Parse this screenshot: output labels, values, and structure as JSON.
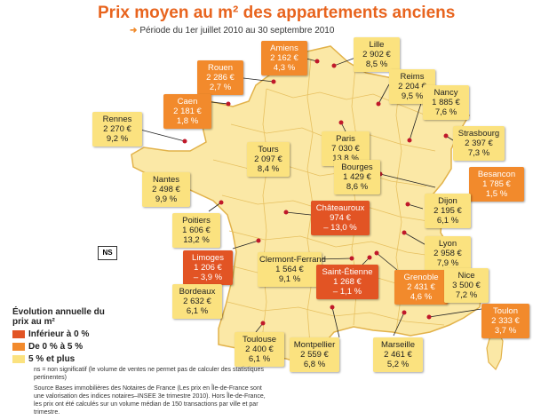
{
  "title": "Prix moyen au m² des appartements anciens",
  "subtitle": "Période du 1er juillet 2010 au 30 septembre 2010",
  "legend": {
    "title": "Évolution annuelle du prix au m²",
    "items": [
      {
        "label": "Inférieur à 0 %",
        "color": "#e25424"
      },
      {
        "label": "De 0 % à 5 %",
        "color": "#f28a2c"
      },
      {
        "label": "5 % et plus",
        "color": "#fbe27f"
      }
    ]
  },
  "ns_label": "NS",
  "notes": {
    "ns": "ns = non significatif (le volume de ventes ne permet pas de calculer des statistiques pertinentes)",
    "source": "Source Bases immobilières des Notaires de France (Les prix en Île-de-France sont une valorisation des indices notaires–INSEE 3e trimestre 2010). Hors Île-de-France, les prix ont été calculés sur un volume médian de 150 transactions par ville et par trimestre."
  },
  "colors": {
    "title": "#e8641e",
    "land": "#fbe8a6",
    "borders": "#e7c060",
    "dots": "#c0182a",
    "ocean": "#ffffff"
  },
  "cities": [
    {
      "name": "Amiens",
      "price": "2 162 €",
      "change": "4,3 %",
      "category": "orange"
    },
    {
      "name": "Lille",
      "price": "2 902 €",
      "change": "8,5 %",
      "category": "yellow"
    },
    {
      "name": "Rouen",
      "price": "2 286 €",
      "change": "2,7 %",
      "category": "orange"
    },
    {
      "name": "Reims",
      "price": "2 204 €",
      "change": "9,5 %",
      "category": "yellow"
    },
    {
      "name": "Caen",
      "price": "2 181 €",
      "change": "1,8 %",
      "category": "orange"
    },
    {
      "name": "Nancy",
      "price": "1 885 €",
      "change": "7,6 %",
      "category": "yellow"
    },
    {
      "name": "Rennes",
      "price": "2 270 €",
      "change": "9,2 %",
      "category": "yellow"
    },
    {
      "name": "Paris",
      "price": "7 030 €",
      "change": "13,8 %",
      "category": "yellow"
    },
    {
      "name": "Strasbourg",
      "price": "2 397 €",
      "change": "7,3 %",
      "category": "yellow"
    },
    {
      "name": "Tours",
      "price": "2 097 €",
      "change": "8,4 %",
      "category": "yellow"
    },
    {
      "name": "Besancon",
      "price": "1 785 €",
      "change": "1,5 %",
      "category": "orange"
    },
    {
      "name": "Nantes",
      "price": "2 498 €",
      "change": "9,9 %",
      "category": "yellow"
    },
    {
      "name": "Bourges",
      "price": "1 429 €",
      "change": "8,6 %",
      "category": "yellow"
    },
    {
      "name": "Dijon",
      "price": "2 195 €",
      "change": "6,1 %",
      "category": "yellow"
    },
    {
      "name": "Châteauroux",
      "price": "974 €",
      "change": "– 13,0 %",
      "category": "red"
    },
    {
      "name": "Poitiers",
      "price": "1 606 €",
      "change": "13,2 %",
      "category": "yellow"
    },
    {
      "name": "Lyon",
      "price": "2 958 €",
      "change": "7,9 %",
      "category": "yellow"
    },
    {
      "name": "Limoges",
      "price": "1 206 €",
      "change": "– 3,9 %",
      "category": "red"
    },
    {
      "name": "Clermont-Ferrand",
      "price": "1 564 €",
      "change": "9,1 %",
      "category": "yellow"
    },
    {
      "name": "Saint-Étienne",
      "price": "1 268 €",
      "change": "– 1,1 %",
      "category": "red"
    },
    {
      "name": "Grenoble",
      "price": "2 431 €",
      "change": "4,6 %",
      "category": "orange"
    },
    {
      "name": "Nice",
      "price": "3 500 €",
      "change": "7,2 %",
      "category": "yellow"
    },
    {
      "name": "Bordeaux",
      "price": "2 632 €",
      "change": "6,1 %",
      "category": "yellow"
    },
    {
      "name": "Toulon",
      "price": "2 333 €",
      "change": "3,7 %",
      "category": "orange"
    },
    {
      "name": "Toulouse",
      "price": "2 400 €",
      "change": "6,1 %",
      "category": "yellow"
    },
    {
      "name": "Montpellier",
      "price": "2 559 €",
      "change": "6,8 %",
      "category": "yellow"
    },
    {
      "name": "Marseille",
      "price": "2 461 €",
      "change": "5,2 %",
      "category": "yellow"
    }
  ]
}
